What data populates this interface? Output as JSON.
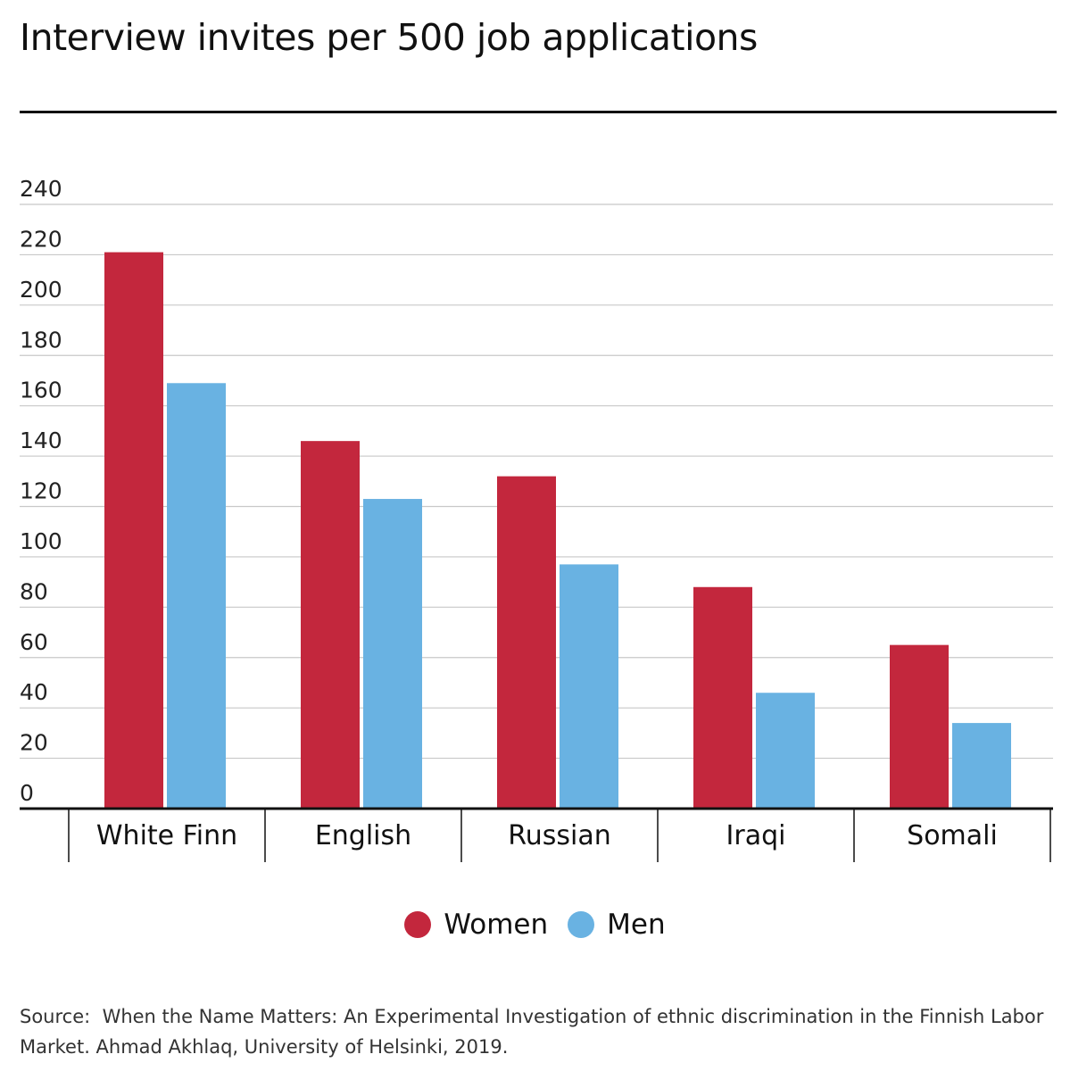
{
  "title": "Interview invites per 500 job applications",
  "colors": {
    "women": "#c3273d",
    "men": "#69b2e2",
    "grid": "#c8c8c8",
    "axis": "#111111"
  },
  "legend": {
    "women": "Women",
    "men": "Men"
  },
  "source": {
    "label": "Source:",
    "text": "When the Name Matters: An Experimental Investigation of ethnic discrimination in the Finnish Labor Market. Ahmad Akhlaq, University of Helsinki, 2019."
  },
  "chart_data": {
    "type": "bar",
    "title": "Interview invites per 500 job applications",
    "categories": [
      "White Finn",
      "English",
      "Russian",
      "Iraqi",
      "Somali"
    ],
    "series": [
      {
        "name": "Women",
        "values": [
          221,
          146,
          132,
          88,
          65
        ]
      },
      {
        "name": "Men",
        "values": [
          169,
          123,
          97,
          46,
          34
        ]
      }
    ],
    "ylim": [
      0,
      240
    ],
    "yticks": [
      0,
      20,
      40,
      60,
      80,
      100,
      120,
      140,
      160,
      180,
      200,
      220,
      240
    ],
    "xlabel": "",
    "ylabel": "",
    "grid": true,
    "legend_position": "bottom"
  }
}
